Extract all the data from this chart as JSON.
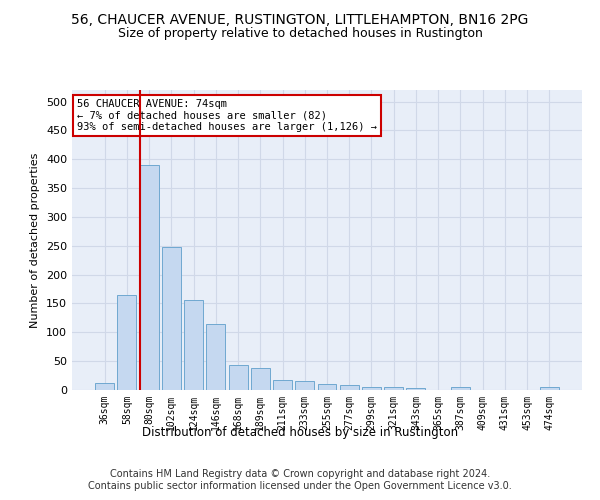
{
  "title": "56, CHAUCER AVENUE, RUSTINGTON, LITTLEHAMPTON, BN16 2PG",
  "subtitle": "Size of property relative to detached houses in Rustington",
  "xlabel": "Distribution of detached houses by size in Rustington",
  "ylabel": "Number of detached properties",
  "categories": [
    "36sqm",
    "58sqm",
    "80sqm",
    "102sqm",
    "124sqm",
    "146sqm",
    "168sqm",
    "189sqm",
    "211sqm",
    "233sqm",
    "255sqm",
    "277sqm",
    "299sqm",
    "321sqm",
    "343sqm",
    "365sqm",
    "387sqm",
    "409sqm",
    "431sqm",
    "453sqm",
    "474sqm"
  ],
  "values": [
    13,
    165,
    390,
    248,
    156,
    114,
    43,
    39,
    18,
    16,
    10,
    9,
    6,
    5,
    4,
    0,
    5,
    0,
    0,
    0,
    5
  ],
  "bar_color": "#c5d8f0",
  "bar_edge_color": "#6fa8d0",
  "grid_color": "#d0d8e8",
  "background_color": "#e8eef8",
  "vline_color": "#cc0000",
  "annotation_text": "56 CHAUCER AVENUE: 74sqm\n← 7% of detached houses are smaller (82)\n93% of semi-detached houses are larger (1,126) →",
  "annotation_box_color": "white",
  "annotation_box_edge": "#cc0000",
  "ylim": [
    0,
    520
  ],
  "yticks": [
    0,
    50,
    100,
    150,
    200,
    250,
    300,
    350,
    400,
    450,
    500
  ],
  "footer": "Contains HM Land Registry data © Crown copyright and database right 2024.\nContains public sector information licensed under the Open Government Licence v3.0.",
  "title_fontsize": 10,
  "subtitle_fontsize": 9,
  "footer_fontsize": 7
}
